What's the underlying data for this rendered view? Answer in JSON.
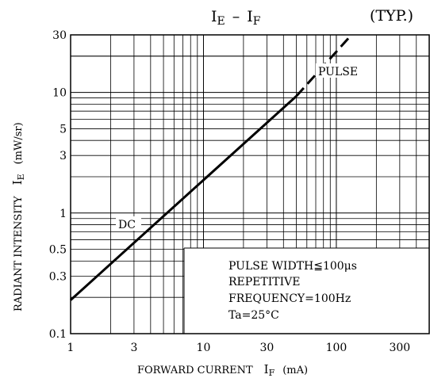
{
  "chart_data": {
    "type": "line",
    "title_main": "I",
    "title_main_sub": "E",
    "title_dash": "–",
    "title_tail": "I",
    "title_tail_sub": "F",
    "title_note": "(TYP.)",
    "xlabel_main": "FORWARD CURRENT",
    "xlabel_var": "I",
    "xlabel_sub": "F",
    "xlabel_unit": "(mA)",
    "ylabel_main": "RADIANT INTENSITY",
    "ylabel_var": "I",
    "ylabel_sub": "E",
    "ylabel_unit": "(mW/sr)",
    "x_scale": "log",
    "y_scale": "log",
    "xlim": [
      1,
      500
    ],
    "ylim": [
      0.1,
      30
    ],
    "x_ticks": [
      {
        "value": 1,
        "label": "1"
      },
      {
        "value": 3,
        "label": "3"
      },
      {
        "value": 10,
        "label": "10"
      },
      {
        "value": 30,
        "label": "30"
      },
      {
        "value": 100,
        "label": "100"
      },
      {
        "value": 300,
        "label": "300"
      }
    ],
    "y_ticks": [
      {
        "value": 0.1,
        "label": "0.1"
      },
      {
        "value": 0.3,
        "label": "0.3"
      },
      {
        "value": 0.5,
        "label": "0.5"
      },
      {
        "value": 1,
        "label": "1"
      },
      {
        "value": 3,
        "label": "3"
      },
      {
        "value": 5,
        "label": "5"
      },
      {
        "value": 10,
        "label": "10"
      },
      {
        "value": 30,
        "label": "30"
      }
    ],
    "grid": true,
    "series": [
      {
        "name": "DC",
        "style": "solid",
        "x": [
          1,
          50
        ],
        "y": [
          0.19,
          9.3
        ]
      },
      {
        "name": "PULSE",
        "style": "dashed",
        "x": [
          50,
          130
        ],
        "y": [
          9.3,
          30
        ]
      }
    ],
    "annotation": {
      "lines": [
        "PULSE WIDTH≦100μs",
        "REPETITIVE",
        "FREQUENCY=100Hz",
        "Ta=25°C"
      ]
    },
    "colors": {
      "line": "#000000",
      "grid": "#000000",
      "background": "#ffffff"
    }
  }
}
